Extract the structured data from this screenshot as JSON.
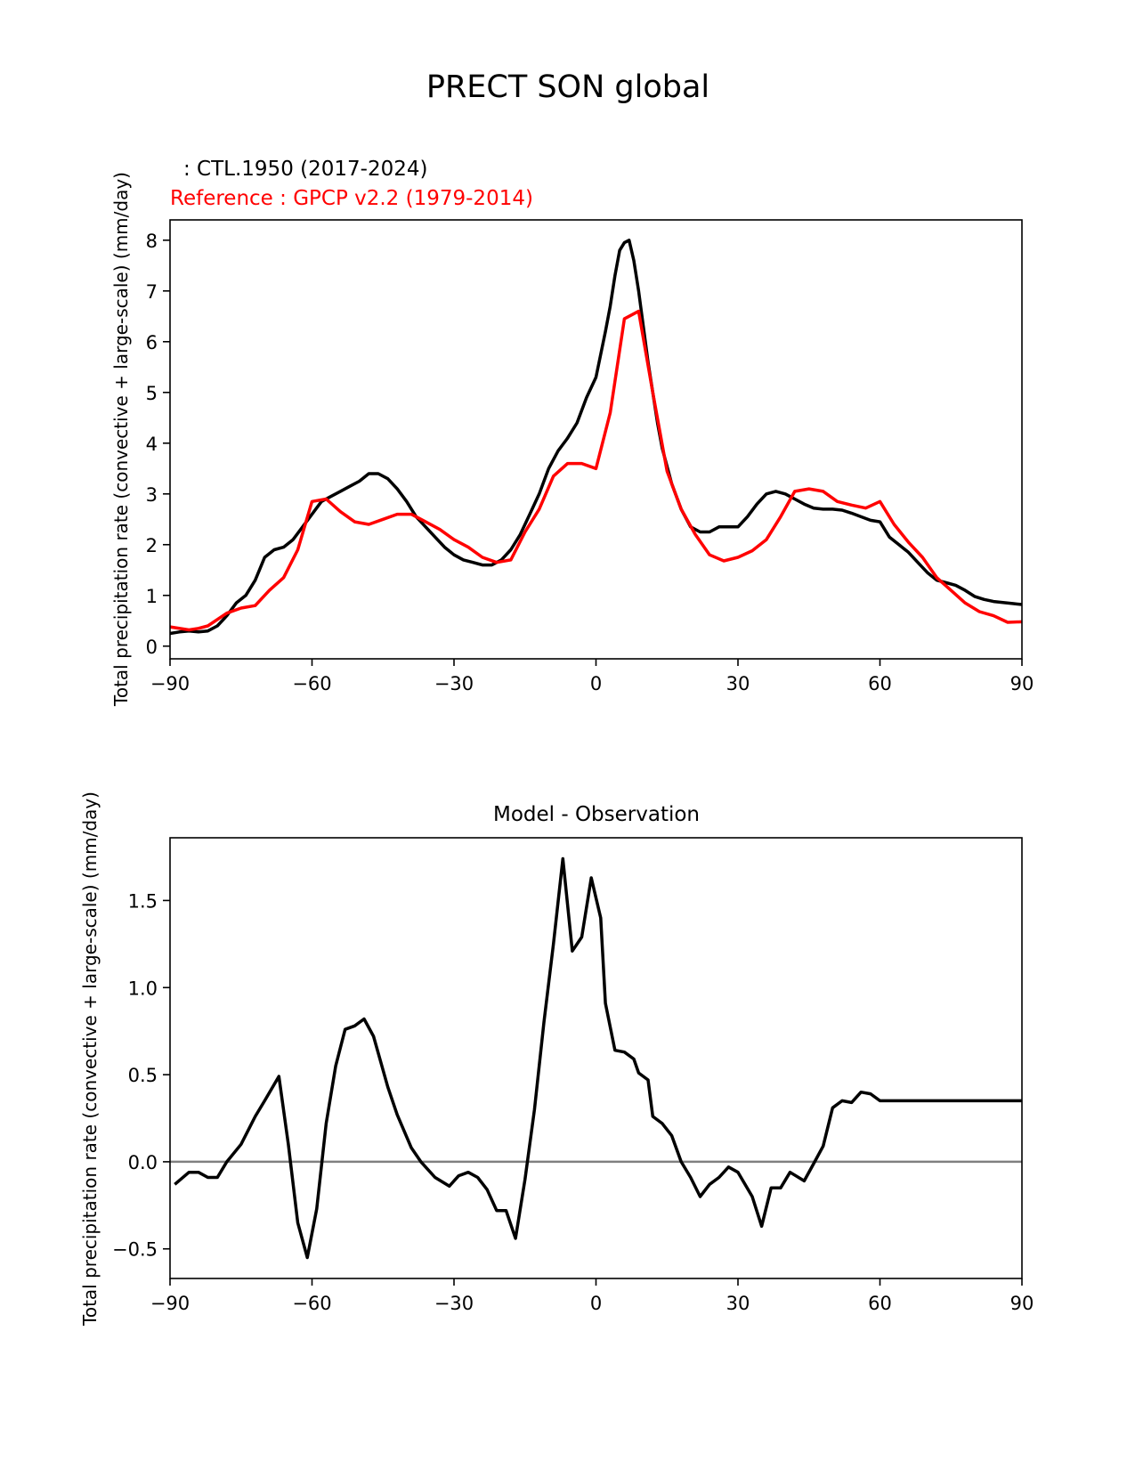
{
  "figure": {
    "title": "PRECT SON global",
    "legend_test": ": CTL.1950 (2017-2024)",
    "legend_reference": "Reference : GPCP v2.2 (1979-2014)"
  },
  "colors": {
    "test": "#000000",
    "reference": "#ff0000",
    "zero_line": "#808080",
    "axes": "#000000"
  },
  "chart_data": [
    {
      "type": "line",
      "title": "",
      "xlabel": "",
      "ylabel": "Total precipitation rate (convective + large-scale) (mm/day)",
      "xlim": [
        -90,
        90
      ],
      "ylim": [
        -0.25,
        8.4
      ],
      "xticks": [
        -90,
        -60,
        -30,
        0,
        30,
        60,
        90
      ],
      "xtick_labels": [
        "−90",
        "−60",
        "−30",
        "0",
        "30",
        "60",
        "90"
      ],
      "yticks": [
        0,
        1,
        2,
        3,
        4,
        5,
        6,
        7,
        8
      ],
      "ytick_labels": [
        "0",
        "1",
        "2",
        "3",
        "4",
        "5",
        "6",
        "7",
        "8"
      ],
      "series": [
        {
          "name": "CTL.1950 (2017-2024)",
          "color": "#000000",
          "x": [
            -90,
            -88,
            -86,
            -84,
            -82,
            -80,
            -78,
            -76,
            -74,
            -72,
            -70,
            -68,
            -66,
            -64,
            -62,
            -60,
            -58,
            -56,
            -54,
            -52,
            -50,
            -48,
            -46,
            -44,
            -42,
            -40,
            -38,
            -36,
            -34,
            -32,
            -30,
            -28,
            -26,
            -24,
            -22,
            -20,
            -18,
            -16,
            -14,
            -12,
            -10,
            -8,
            -6,
            -4,
            -2,
            0,
            2,
            3,
            4,
            5,
            6,
            7,
            8,
            9,
            10,
            11,
            12,
            13,
            14,
            16,
            18,
            20,
            22,
            24,
            26,
            28,
            30,
            32,
            34,
            36,
            38,
            40,
            42,
            44,
            46,
            48,
            50,
            52,
            54,
            56,
            58,
            60,
            62,
            64,
            66,
            68,
            70,
            72,
            74,
            76,
            78,
            80,
            82,
            84,
            86,
            88,
            90
          ],
          "y": [
            0.25,
            0.28,
            0.3,
            0.28,
            0.3,
            0.4,
            0.6,
            0.85,
            1.0,
            1.3,
            1.75,
            1.9,
            1.95,
            2.1,
            2.35,
            2.6,
            2.85,
            2.95,
            3.05,
            3.15,
            3.25,
            3.4,
            3.4,
            3.3,
            3.1,
            2.85,
            2.55,
            2.35,
            2.15,
            1.95,
            1.8,
            1.7,
            1.65,
            1.6,
            1.6,
            1.7,
            1.9,
            2.2,
            2.6,
            3.0,
            3.5,
            3.85,
            4.1,
            4.4,
            4.9,
            5.3,
            6.2,
            6.7,
            7.3,
            7.8,
            7.95,
            8.0,
            7.6,
            7.0,
            6.3,
            5.6,
            5.0,
            4.4,
            3.9,
            3.2,
            2.7,
            2.35,
            2.25,
            2.25,
            2.35,
            2.35,
            2.35,
            2.55,
            2.8,
            3.0,
            3.05,
            3.0,
            2.9,
            2.8,
            2.72,
            2.7,
            2.7,
            2.68,
            2.62,
            2.55,
            2.48,
            2.45,
            2.15,
            2.0,
            1.85,
            1.65,
            1.45,
            1.3,
            1.25,
            1.2,
            1.1,
            0.98,
            0.92,
            0.88,
            0.86,
            0.84,
            0.82
          ]
        },
        {
          "name": "GPCP v2.2 (1979-2014)",
          "color": "#ff0000",
          "x": [
            -90,
            -86,
            -84,
            -82,
            -78,
            -75,
            -72,
            -69,
            -66,
            -63,
            -60,
            -57,
            -54,
            -51,
            -48,
            -45,
            -42,
            -39,
            -36,
            -33,
            -30,
            -27,
            -24,
            -21,
            -18,
            -15,
            -12,
            -9,
            -6,
            -3,
            0,
            3,
            6,
            9,
            12,
            15,
            18,
            21,
            24,
            27,
            30,
            33,
            36,
            39,
            42,
            45,
            48,
            51,
            54,
            57,
            60,
            63,
            66,
            69,
            72,
            75,
            78,
            81,
            84,
            87,
            90
          ],
          "y": [
            0.38,
            0.32,
            0.35,
            0.4,
            0.65,
            0.75,
            0.8,
            1.1,
            1.35,
            1.9,
            2.85,
            2.9,
            2.65,
            2.45,
            2.4,
            2.5,
            2.6,
            2.6,
            2.45,
            2.3,
            2.1,
            1.95,
            1.75,
            1.65,
            1.7,
            2.25,
            2.7,
            3.35,
            3.6,
            3.6,
            3.5,
            4.6,
            6.45,
            6.6,
            5.0,
            3.45,
            2.7,
            2.2,
            1.8,
            1.68,
            1.75,
            1.88,
            2.1,
            2.55,
            3.05,
            3.1,
            3.05,
            2.85,
            2.78,
            2.72,
            2.85,
            2.4,
            2.05,
            1.75,
            1.35,
            1.1,
            0.85,
            0.68,
            0.6,
            0.47,
            0.48
          ]
        }
      ]
    },
    {
      "type": "line",
      "title": "Model - Observation",
      "xlabel": "",
      "ylabel": "Total precipitation rate (convective + large-scale) (mm/day)",
      "xlim": [
        -90,
        90
      ],
      "ylim": [
        -0.67,
        1.86
      ],
      "xticks": [
        -90,
        -60,
        -30,
        0,
        30,
        60,
        90
      ],
      "xtick_labels": [
        "−90",
        "−60",
        "−30",
        "0",
        "30",
        "60",
        "90"
      ],
      "yticks": [
        -0.5,
        0.0,
        0.5,
        1.0,
        1.5
      ],
      "ytick_labels": [
        "−0.5",
        "0.0",
        "0.5",
        "1.0",
        "1.5"
      ],
      "zero_line": 0,
      "series": [
        {
          "name": "Model - Observation",
          "color": "#000000",
          "x": [
            -89,
            -86,
            -84,
            -82,
            -80,
            -78,
            -75,
            -72,
            -70,
            -67,
            -65,
            -63,
            -61,
            -59,
            -57,
            -55,
            -53,
            -51,
            -49,
            -47,
            -44,
            -42,
            -39,
            -37,
            -34,
            -31,
            -29,
            -27,
            -25,
            -23,
            -21,
            -19,
            -17,
            -15,
            -13,
            -11,
            -9,
            -7,
            -5,
            -3,
            -1,
            1,
            2,
            4,
            6,
            8,
            9,
            11,
            12,
            14,
            16,
            18,
            20,
            22,
            24,
            26,
            28,
            30,
            33,
            35,
            37,
            39,
            41,
            44,
            46,
            48,
            50,
            52,
            54,
            56,
            58,
            60,
            62,
            64,
            66,
            68,
            70,
            72,
            74,
            76,
            78,
            80,
            82,
            84,
            86,
            88,
            90
          ],
          "y": [
            -0.13,
            -0.06,
            -0.06,
            -0.09,
            -0.09,
            0.0,
            0.1,
            0.26,
            0.35,
            0.49,
            0.1,
            -0.35,
            -0.55,
            -0.27,
            0.22,
            0.55,
            0.76,
            0.78,
            0.82,
            0.72,
            0.43,
            0.27,
            0.08,
            0.0,
            -0.09,
            -0.14,
            -0.08,
            -0.06,
            -0.09,
            -0.16,
            -0.28,
            -0.28,
            -0.44,
            -0.1,
            0.3,
            0.8,
            1.25,
            1.74,
            1.21,
            1.29,
            1.63,
            1.4,
            0.91,
            0.64,
            0.63,
            0.59,
            0.51,
            0.47,
            0.26,
            0.22,
            0.15,
            0.0,
            -0.09,
            -0.2,
            -0.13,
            -0.09,
            -0.03,
            -0.06,
            -0.2,
            -0.37,
            -0.15,
            -0.15,
            -0.06,
            -0.11,
            -0.01,
            0.09,
            0.31,
            0.35,
            0.34,
            0.4,
            0.39,
            0.35,
            0.35,
            0.35,
            0.35,
            0.35,
            0.35,
            0.35,
            0.35,
            0.35,
            0.35,
            0.35,
            0.35,
            0.35,
            0.35,
            0.35,
            0.35
          ]
        }
      ]
    }
  ]
}
